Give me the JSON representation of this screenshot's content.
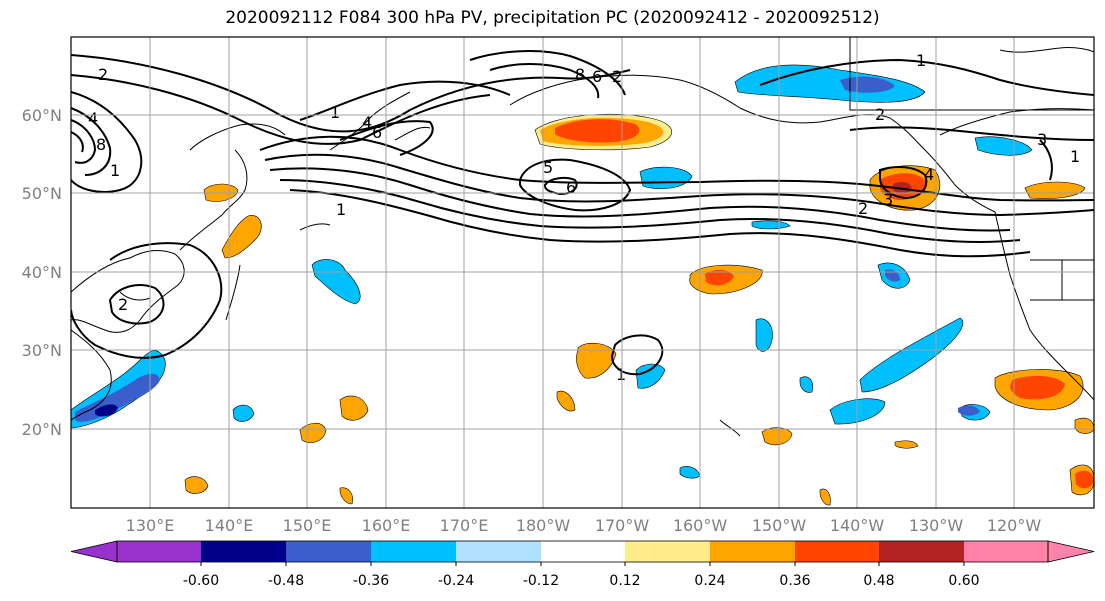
{
  "title": "2020092112 F084 300 hPa PV, precipitation PC (2020092412 - 2020092512)",
  "map": {
    "lat_ticks": [
      "60°N",
      "50°N",
      "40°N",
      "30°N",
      "20°N"
    ],
    "lon_ticks": [
      "130°E",
      "140°E",
      "150°E",
      "160°E",
      "170°E",
      "180°W",
      "170°W",
      "160°W",
      "150°W",
      "140°W",
      "130°W",
      "120°W"
    ],
    "contour_labels": [
      "2",
      "4",
      "8",
      "1",
      "1",
      "6",
      "4",
      "8",
      "2",
      "6",
      "5",
      "6",
      "1",
      "2",
      "3",
      "4",
      "2",
      "1",
      "2",
      "3",
      "1",
      "1"
    ],
    "grid": true,
    "coastline_color": "#000000",
    "contour_color": "#000000"
  },
  "colorbar": {
    "colors": [
      "#9932cc",
      "#00008b",
      "#3a5fcd",
      "#00bfff",
      "#b0e2ff",
      "#ffffff",
      "#ffec8b",
      "#ffa500",
      "#ff4500",
      "#b22222",
      "#ff82ab"
    ],
    "tick_labels": [
      "-0.60",
      "-0.48",
      "-0.36",
      "-0.24",
      "-0.12",
      "0.12",
      "0.24",
      "0.36",
      "0.48",
      "0.60"
    ]
  }
}
